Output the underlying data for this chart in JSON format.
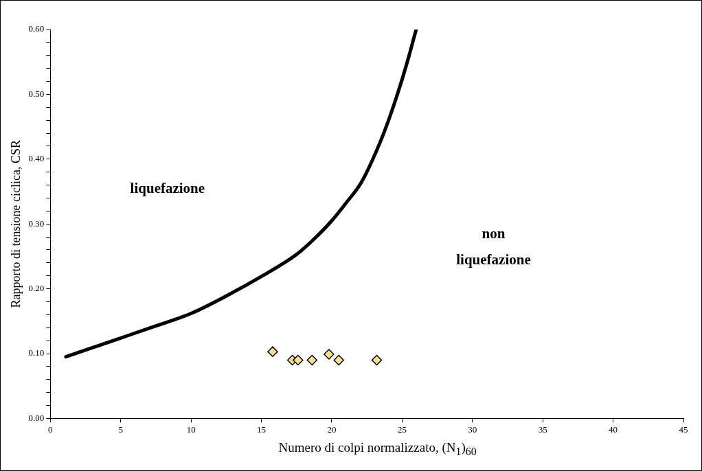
{
  "chart_data": {
    "type": "scatter",
    "xlabel": "Numero di colpi normalizzato, (N$_{1}$)$_{60}$",
    "ylabel": "Rapporto di tensione ciclica, CSR",
    "annotations": [
      "liquefazione",
      "non\nliquefazione"
    ],
    "xlim": [
      0,
      45
    ],
    "ylim": [
      0,
      0.6
    ],
    "xticks": [
      0,
      5,
      10,
      15,
      20,
      25,
      30,
      35,
      40,
      45
    ],
    "yticks": [
      {
        "value": 0,
        "label": "0.00"
      },
      {
        "value": 0.02,
        "label": null
      },
      {
        "value": 0.04,
        "label": null
      },
      {
        "value": 0.06,
        "label": null
      },
      {
        "value": 0.08,
        "label": null
      },
      {
        "value": 0.1,
        "label": "0.10"
      },
      {
        "value": 0.12,
        "label": null
      },
      {
        "value": 0.14,
        "label": null
      },
      {
        "value": 0.16,
        "label": null
      },
      {
        "value": 0.18,
        "label": null
      },
      {
        "value": 0.2,
        "label": "0.20"
      },
      {
        "value": 0.22,
        "label": null
      },
      {
        "value": 0.24,
        "label": null
      },
      {
        "value": 0.26,
        "label": null
      },
      {
        "value": 0.28,
        "label": null
      },
      {
        "value": 0.3,
        "label": "0.30"
      },
      {
        "value": 0.32,
        "label": null
      },
      {
        "value": 0.34,
        "label": null
      },
      {
        "value": 0.36,
        "label": null
      },
      {
        "value": 0.38,
        "label": null
      },
      {
        "value": 0.4,
        "label": "0.40"
      },
      {
        "value": 0.42,
        "label": null
      },
      {
        "value": 0.44,
        "label": null
      },
      {
        "value": 0.46,
        "label": null
      },
      {
        "value": 0.48,
        "label": null
      },
      {
        "value": 0.5,
        "label": "0.50"
      },
      {
        "value": 0.52,
        "label": null
      },
      {
        "value": 0.54,
        "label": null
      },
      {
        "value": 0.56,
        "label": null
      },
      {
        "value": 0.58,
        "label": null
      },
      {
        "value": 0.6,
        "label": "0.60"
      }
    ],
    "grid": false,
    "legend": false,
    "series": [
      {
        "type": "line",
        "color": "#000000",
        "marker": "none",
        "x": [
          1.1,
          5,
          7.4,
          10,
          12.6,
          15,
          17.5,
          18.8,
          20,
          21,
          22.1,
          23.4,
          24.2,
          25,
          25.5,
          26
        ],
        "values": [
          0.095,
          0.124,
          0.142,
          0.162,
          0.19,
          0.219,
          0.253,
          0.278,
          0.305,
          0.332,
          0.364,
          0.424,
          0.47,
          0.523,
          0.56,
          0.6
        ]
      },
      {
        "color": "#fde08f",
        "marker": "diamond",
        "x": [
          15.8,
          17.2,
          17.6,
          18.6,
          19.8,
          20.5,
          23.2
        ],
        "values": [
          0.103,
          0.09,
          0.09,
          0.09,
          0.099,
          0.09,
          0.09
        ]
      }
    ]
  }
}
